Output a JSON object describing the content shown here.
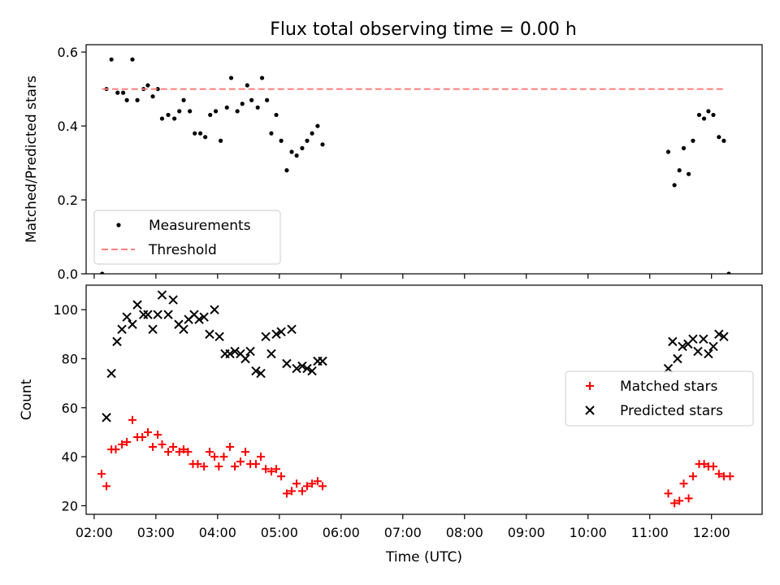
{
  "title": "Flux total observing time = 0.00 h",
  "colors": {
    "measurement": "#000000",
    "threshold": "#ff7f7f",
    "matched": "#ff0000",
    "predicted": "#000000"
  },
  "chart_data": [
    {
      "type": "scatter",
      "ylabel": "Matched/Predicted stars",
      "xlim": [
        1.87,
        12.82
      ],
      "ylim": [
        0,
        0.62
      ],
      "yticks": [
        0,
        0.2,
        0.4,
        0.6
      ],
      "ytick_labels": [
        "0.0",
        "0.2",
        "0.4",
        "0.6"
      ],
      "xticks": [
        2,
        3,
        4,
        5,
        6,
        7,
        8,
        9,
        10,
        11,
        12
      ],
      "xtick_labels": [
        "",
        "",
        "",
        "",
        "",
        "",
        "",
        "",
        "",
        "",
        ""
      ],
      "legend": {
        "placement": "lower-left",
        "items": [
          "Measurements",
          "Threshold"
        ]
      },
      "series": [
        {
          "name": "Measurements",
          "marker": "dot",
          "x": [
            2.13,
            2.2,
            2.28,
            2.38,
            2.47,
            2.53,
            2.62,
            2.7,
            2.8,
            2.87,
            2.95,
            3.03,
            3.1,
            3.2,
            3.3,
            3.38,
            3.45,
            3.55,
            3.63,
            3.72,
            3.8,
            3.88,
            3.97,
            4.05,
            4.15,
            4.22,
            4.32,
            4.4,
            4.48,
            4.55,
            4.65,
            4.72,
            4.8,
            4.87,
            4.95,
            5.03,
            5.12,
            5.2,
            5.28,
            5.37,
            5.45,
            5.53,
            5.62,
            5.7,
            11.3,
            11.4,
            11.48,
            11.55,
            11.63,
            11.7,
            11.8,
            11.88,
            11.95,
            12.03,
            12.12,
            12.2,
            12.28
          ],
          "y": [
            0.0,
            0.5,
            0.58,
            0.49,
            0.49,
            0.47,
            0.58,
            0.47,
            0.5,
            0.51,
            0.48,
            0.5,
            0.42,
            0.43,
            0.42,
            0.44,
            0.47,
            0.44,
            0.38,
            0.38,
            0.37,
            0.43,
            0.44,
            0.36,
            0.45,
            0.53,
            0.44,
            0.46,
            0.51,
            0.47,
            0.45,
            0.53,
            0.47,
            0.38,
            0.43,
            0.36,
            0.28,
            0.33,
            0.32,
            0.34,
            0.36,
            0.38,
            0.4,
            0.35,
            0.33,
            0.24,
            0.28,
            0.34,
            0.27,
            0.36,
            0.43,
            0.42,
            0.44,
            0.43,
            0.37,
            0.36,
            0.0
          ]
        },
        {
          "name": "Threshold",
          "style": "dashed-line",
          "x": [
            2.13,
            12.2
          ],
          "y": [
            0.5,
            0.5
          ]
        }
      ]
    },
    {
      "type": "scatter",
      "xlabel": "Time (UTC)",
      "ylabel": "Count",
      "xlim": [
        1.87,
        12.82
      ],
      "ylim": [
        16.5,
        110
      ],
      "yticks": [
        20,
        40,
        60,
        80,
        100
      ],
      "ytick_labels": [
        "20",
        "40",
        "60",
        "80",
        "100"
      ],
      "xticks": [
        2,
        3,
        4,
        5,
        6,
        7,
        8,
        9,
        10,
        11,
        12
      ],
      "xtick_labels": [
        "02:00",
        "03:00",
        "04:00",
        "05:00",
        "06:00",
        "07:00",
        "08:00",
        "09:00",
        "10:00",
        "11:00",
        "12:00"
      ],
      "legend": {
        "placement": "center-right",
        "items": [
          "Matched stars",
          "Predicted stars"
        ]
      },
      "series": [
        {
          "name": "Matched stars",
          "marker": "plus",
          "x": [
            2.12,
            2.2,
            2.28,
            2.35,
            2.45,
            2.53,
            2.62,
            2.7,
            2.78,
            2.87,
            2.95,
            3.03,
            3.1,
            3.2,
            3.28,
            3.38,
            3.45,
            3.52,
            3.6,
            3.68,
            3.78,
            3.87,
            3.95,
            4.02,
            4.1,
            4.2,
            4.28,
            4.37,
            4.45,
            4.53,
            4.62,
            4.7,
            4.78,
            4.87,
            4.95,
            5.03,
            5.12,
            5.2,
            5.28,
            5.37,
            5.45,
            5.53,
            5.62,
            5.7,
            11.3,
            11.4,
            11.48,
            11.55,
            11.63,
            11.7,
            11.8,
            11.88,
            11.95,
            12.03,
            12.12,
            12.2,
            12.3
          ],
          "y": [
            33,
            28,
            43,
            43,
            45,
            46,
            55,
            48,
            48,
            50,
            44,
            49,
            45,
            42,
            44,
            42,
            43,
            42,
            37,
            37,
            36,
            42,
            40,
            36,
            40,
            44,
            36,
            38,
            42,
            37,
            37,
            40,
            35,
            34,
            35,
            32,
            25,
            26,
            29,
            26,
            28,
            29,
            30,
            28,
            25,
            21,
            22,
            29,
            23,
            32,
            37,
            37,
            36,
            36,
            33,
            32,
            32
          ]
        },
        {
          "name": "Predicted stars",
          "marker": "x",
          "x": [
            2.2,
            2.28,
            2.37,
            2.45,
            2.53,
            2.62,
            2.7,
            2.8,
            2.87,
            2.95,
            3.03,
            3.1,
            3.2,
            3.28,
            3.37,
            3.45,
            3.53,
            3.62,
            3.7,
            3.78,
            3.87,
            3.95,
            4.03,
            4.12,
            4.2,
            4.28,
            4.37,
            4.45,
            4.53,
            4.62,
            4.7,
            4.78,
            4.87,
            4.95,
            5.03,
            5.12,
            5.2,
            5.28,
            5.37,
            5.45,
            5.53,
            5.62,
            5.7,
            11.3,
            11.37,
            11.45,
            11.53,
            11.62,
            11.7,
            11.78,
            11.87,
            11.95,
            12.03,
            12.12,
            12.2
          ],
          "y": [
            56,
            74,
            87,
            92,
            97,
            94,
            102,
            98,
            98,
            92,
            98,
            106,
            98,
            104,
            94,
            92,
            96,
            98,
            96,
            97,
            90,
            100,
            89,
            82,
            82,
            83,
            82,
            80,
            83,
            75,
            74,
            89,
            82,
            90,
            91,
            78,
            92,
            76,
            77,
            76,
            75,
            79,
            79,
            76,
            87,
            80,
            85,
            86,
            88,
            83,
            88,
            82,
            85,
            90,
            89
          ]
        }
      ]
    }
  ]
}
